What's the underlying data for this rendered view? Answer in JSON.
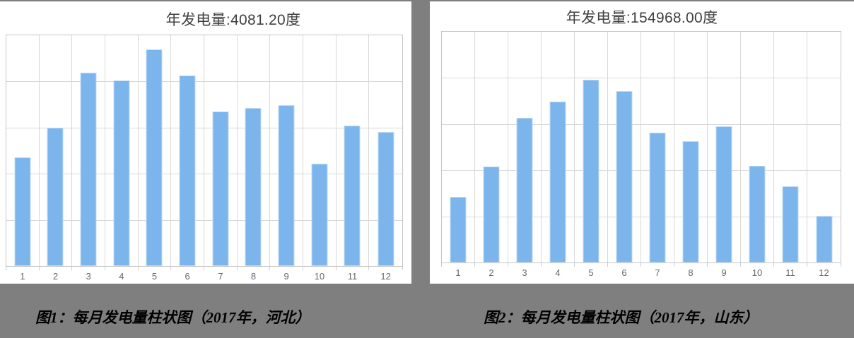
{
  "page": {
    "background_color": "#7f7f7f",
    "card_background_color": "#ffffff"
  },
  "colors": {
    "bar_fill": "#7cb5ec",
    "gridline": "#d8d8d8",
    "plot_border": "#c5c5c5",
    "axis_tick": "#c9d2da",
    "title_text": "#404040",
    "tick_label_text": "#5e6973",
    "caption_text": "#000000"
  },
  "chart_data": [
    {
      "type": "bar",
      "title": "年发电量:4081.20度",
      "caption": "图1：每月发电量柱状图（2017年，河北）",
      "categories": [
        "1",
        "2",
        "3",
        "4",
        "5",
        "6",
        "7",
        "8",
        "9",
        "10",
        "11",
        "12"
      ],
      "values": [
        236,
        300,
        419,
        402,
        469.2,
        413,
        335,
        342,
        349,
        221,
        305,
        290
      ],
      "annual_total_label": "4081.20",
      "unit": "度",
      "xlabel": "",
      "ylabel": "",
      "ylim": [
        0,
        500
      ],
      "gridline_interval": 100,
      "grid": "on",
      "legend": "none"
    },
    {
      "type": "bar",
      "title": "年发电量:154968.00度",
      "caption": "图2：每月发电量柱状图（2017年，山东）",
      "categories": [
        "1",
        "2",
        "3",
        "4",
        "5",
        "6",
        "7",
        "8",
        "9",
        "10",
        "11",
        "12"
      ],
      "values": [
        7120,
        10410,
        15700,
        17460,
        19830,
        18600,
        14090,
        13170,
        14780,
        10490,
        8270,
        5048
      ],
      "annual_total_label": "154968.00",
      "unit": "度",
      "xlabel": "",
      "ylabel": "",
      "ylim": [
        0,
        25000
      ],
      "gridline_interval": 5000,
      "grid": "on",
      "legend": "none"
    }
  ]
}
